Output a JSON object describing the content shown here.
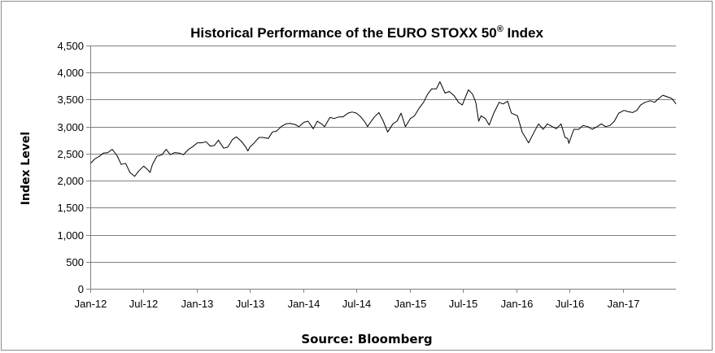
{
  "chart_data": {
    "type": "line",
    "title": "Historical Performance of the EURO STOXX 50",
    "title_superscript": "®",
    "title_suffix": " Index",
    "ylabel": "Index Level",
    "xlabel": "",
    "source": "Source: Bloomberg",
    "ylim": [
      0,
      4500
    ],
    "y_ticks": [
      0,
      500,
      1000,
      1500,
      2000,
      2500,
      3000,
      3500,
      4000,
      4500
    ],
    "y_tick_labels": [
      "0",
      "500",
      "1,000",
      "1,500",
      "2,000",
      "2,500",
      "3,000",
      "3,500",
      "4,000",
      "4,500"
    ],
    "x_tick_labels": [
      "Jan-12",
      "Jul-12",
      "Jan-13",
      "Jul-13",
      "Jan-14",
      "Jul-14",
      "Jan-15",
      "Jul-15",
      "Jan-16",
      "Jul-16",
      "Jan-17"
    ],
    "x_tick_dates": [
      "2012-01-01",
      "2012-07-01",
      "2013-01-01",
      "2013-07-01",
      "2014-01-01",
      "2014-07-01",
      "2015-01-01",
      "2015-07-01",
      "2016-01-01",
      "2016-07-01",
      "2017-01-01"
    ],
    "xlim": [
      "2012-01-01",
      "2017-06-30"
    ],
    "grid": true,
    "line_color": "#000000",
    "grid_color": "#808080",
    "series": [
      {
        "name": "",
        "points": [
          [
            "2012-01-02",
            2320
          ],
          [
            "2012-01-16",
            2400
          ],
          [
            "2012-02-01",
            2450
          ],
          [
            "2012-02-15",
            2510
          ],
          [
            "2012-03-01",
            2520
          ],
          [
            "2012-03-16",
            2580
          ],
          [
            "2012-04-02",
            2460
          ],
          [
            "2012-04-16",
            2300
          ],
          [
            "2012-05-01",
            2320
          ],
          [
            "2012-05-16",
            2150
          ],
          [
            "2012-06-01",
            2080
          ],
          [
            "2012-06-15",
            2180
          ],
          [
            "2012-07-02",
            2270
          ],
          [
            "2012-07-16",
            2200
          ],
          [
            "2012-07-24",
            2150
          ],
          [
            "2012-08-01",
            2300
          ],
          [
            "2012-08-16",
            2450
          ],
          [
            "2012-09-03",
            2480
          ],
          [
            "2012-09-17",
            2580
          ],
          [
            "2012-10-01",
            2480
          ],
          [
            "2012-10-16",
            2520
          ],
          [
            "2012-11-01",
            2510
          ],
          [
            "2012-11-15",
            2480
          ],
          [
            "2012-12-03",
            2580
          ],
          [
            "2012-12-17",
            2630
          ],
          [
            "2013-01-02",
            2700
          ],
          [
            "2013-01-16",
            2700
          ],
          [
            "2013-02-01",
            2720
          ],
          [
            "2013-02-15",
            2640
          ],
          [
            "2013-03-01",
            2650
          ],
          [
            "2013-03-15",
            2750
          ],
          [
            "2013-04-02",
            2600
          ],
          [
            "2013-04-16",
            2620
          ],
          [
            "2013-05-02",
            2760
          ],
          [
            "2013-05-16",
            2810
          ],
          [
            "2013-06-03",
            2720
          ],
          [
            "2013-06-17",
            2620
          ],
          [
            "2013-06-24",
            2550
          ],
          [
            "2013-07-01",
            2620
          ],
          [
            "2013-07-16",
            2700
          ],
          [
            "2013-08-01",
            2800
          ],
          [
            "2013-08-16",
            2800
          ],
          [
            "2013-09-02",
            2780
          ],
          [
            "2013-09-16",
            2900
          ],
          [
            "2013-10-01",
            2920
          ],
          [
            "2013-10-16",
            3000
          ],
          [
            "2013-11-01",
            3050
          ],
          [
            "2013-11-15",
            3060
          ],
          [
            "2013-12-02",
            3040
          ],
          [
            "2013-12-16",
            3000
          ],
          [
            "2014-01-02",
            3080
          ],
          [
            "2014-01-16",
            3100
          ],
          [
            "2014-02-03",
            2960
          ],
          [
            "2014-02-17",
            3100
          ],
          [
            "2014-03-03",
            3050
          ],
          [
            "2014-03-14",
            3000
          ],
          [
            "2014-04-01",
            3170
          ],
          [
            "2014-04-16",
            3150
          ],
          [
            "2014-05-02",
            3180
          ],
          [
            "2014-05-16",
            3180
          ],
          [
            "2014-06-02",
            3250
          ],
          [
            "2014-06-16",
            3270
          ],
          [
            "2014-07-01",
            3250
          ],
          [
            "2014-07-16",
            3180
          ],
          [
            "2014-08-01",
            3070
          ],
          [
            "2014-08-08",
            3000
          ],
          [
            "2014-08-18",
            3080
          ],
          [
            "2014-09-01",
            3180
          ],
          [
            "2014-09-16",
            3260
          ],
          [
            "2014-10-01",
            3100
          ],
          [
            "2014-10-16",
            2900
          ],
          [
            "2014-11-03",
            3050
          ],
          [
            "2014-11-17",
            3100
          ],
          [
            "2014-12-01",
            3250
          ],
          [
            "2014-12-16",
            3000
          ],
          [
            "2015-01-02",
            3150
          ],
          [
            "2015-01-16",
            3200
          ],
          [
            "2015-02-02",
            3350
          ],
          [
            "2015-02-16",
            3450
          ],
          [
            "2015-03-02",
            3600
          ],
          [
            "2015-03-16",
            3700
          ],
          [
            "2015-04-01",
            3700
          ],
          [
            "2015-04-13",
            3830
          ],
          [
            "2015-05-01",
            3620
          ],
          [
            "2015-05-15",
            3650
          ],
          [
            "2015-06-01",
            3570
          ],
          [
            "2015-06-16",
            3450
          ],
          [
            "2015-06-29",
            3400
          ],
          [
            "2015-07-06",
            3500
          ],
          [
            "2015-07-20",
            3680
          ],
          [
            "2015-08-03",
            3600
          ],
          [
            "2015-08-14",
            3450
          ],
          [
            "2015-08-24",
            3100
          ],
          [
            "2015-09-01",
            3200
          ],
          [
            "2015-09-16",
            3150
          ],
          [
            "2015-09-29",
            3030
          ],
          [
            "2015-10-15",
            3250
          ],
          [
            "2015-11-02",
            3450
          ],
          [
            "2015-11-16",
            3420
          ],
          [
            "2015-12-01",
            3470
          ],
          [
            "2015-12-14",
            3250
          ],
          [
            "2016-01-04",
            3200
          ],
          [
            "2016-01-20",
            2900
          ],
          [
            "2016-02-11",
            2700
          ],
          [
            "2016-03-01",
            2900
          ],
          [
            "2016-03-16",
            3050
          ],
          [
            "2016-04-01",
            2950
          ],
          [
            "2016-04-15",
            3050
          ],
          [
            "2016-05-02",
            3000
          ],
          [
            "2016-05-16",
            2960
          ],
          [
            "2016-06-01",
            3050
          ],
          [
            "2016-06-15",
            2800
          ],
          [
            "2016-06-24",
            2780
          ],
          [
            "2016-06-28",
            2690
          ],
          [
            "2016-07-15",
            2950
          ],
          [
            "2016-08-01",
            2950
          ],
          [
            "2016-08-16",
            3020
          ],
          [
            "2016-09-01",
            3000
          ],
          [
            "2016-09-16",
            2950
          ],
          [
            "2016-10-03",
            3000
          ],
          [
            "2016-10-17",
            3050
          ],
          [
            "2016-11-01",
            3000
          ],
          [
            "2016-11-16",
            3020
          ],
          [
            "2016-12-01",
            3100
          ],
          [
            "2016-12-16",
            3250
          ],
          [
            "2017-01-03",
            3300
          ],
          [
            "2017-01-16",
            3280
          ],
          [
            "2017-02-01",
            3260
          ],
          [
            "2017-02-16",
            3300
          ],
          [
            "2017-03-01",
            3400
          ],
          [
            "2017-03-16",
            3450
          ],
          [
            "2017-04-03",
            3480
          ],
          [
            "2017-04-18",
            3450
          ],
          [
            "2017-05-02",
            3520
          ],
          [
            "2017-05-16",
            3580
          ],
          [
            "2017-06-01",
            3550
          ],
          [
            "2017-06-16",
            3520
          ],
          [
            "2017-06-30",
            3420
          ]
        ]
      }
    ]
  }
}
